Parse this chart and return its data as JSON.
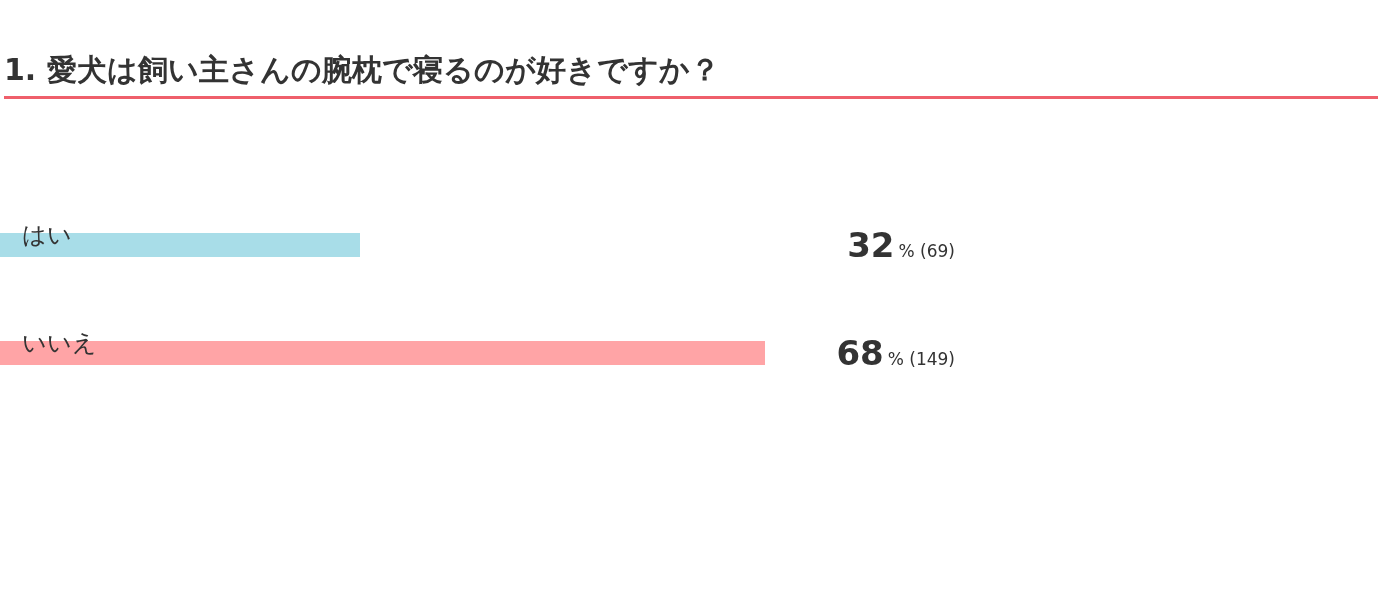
{
  "chart_data": {
    "type": "bar",
    "orientation": "horizontal",
    "title": "1. 愛犬は飼い主さんの腕枕で寝るのが好きですか？",
    "categories": [
      "はい",
      "いいえ"
    ],
    "values": [
      32,
      68
    ],
    "colors": [
      "#a8dde8",
      "#ffa4a6"
    ],
    "value_labels": [
      "32% (69)",
      "68% (149)"
    ],
    "legend": false
  }
}
